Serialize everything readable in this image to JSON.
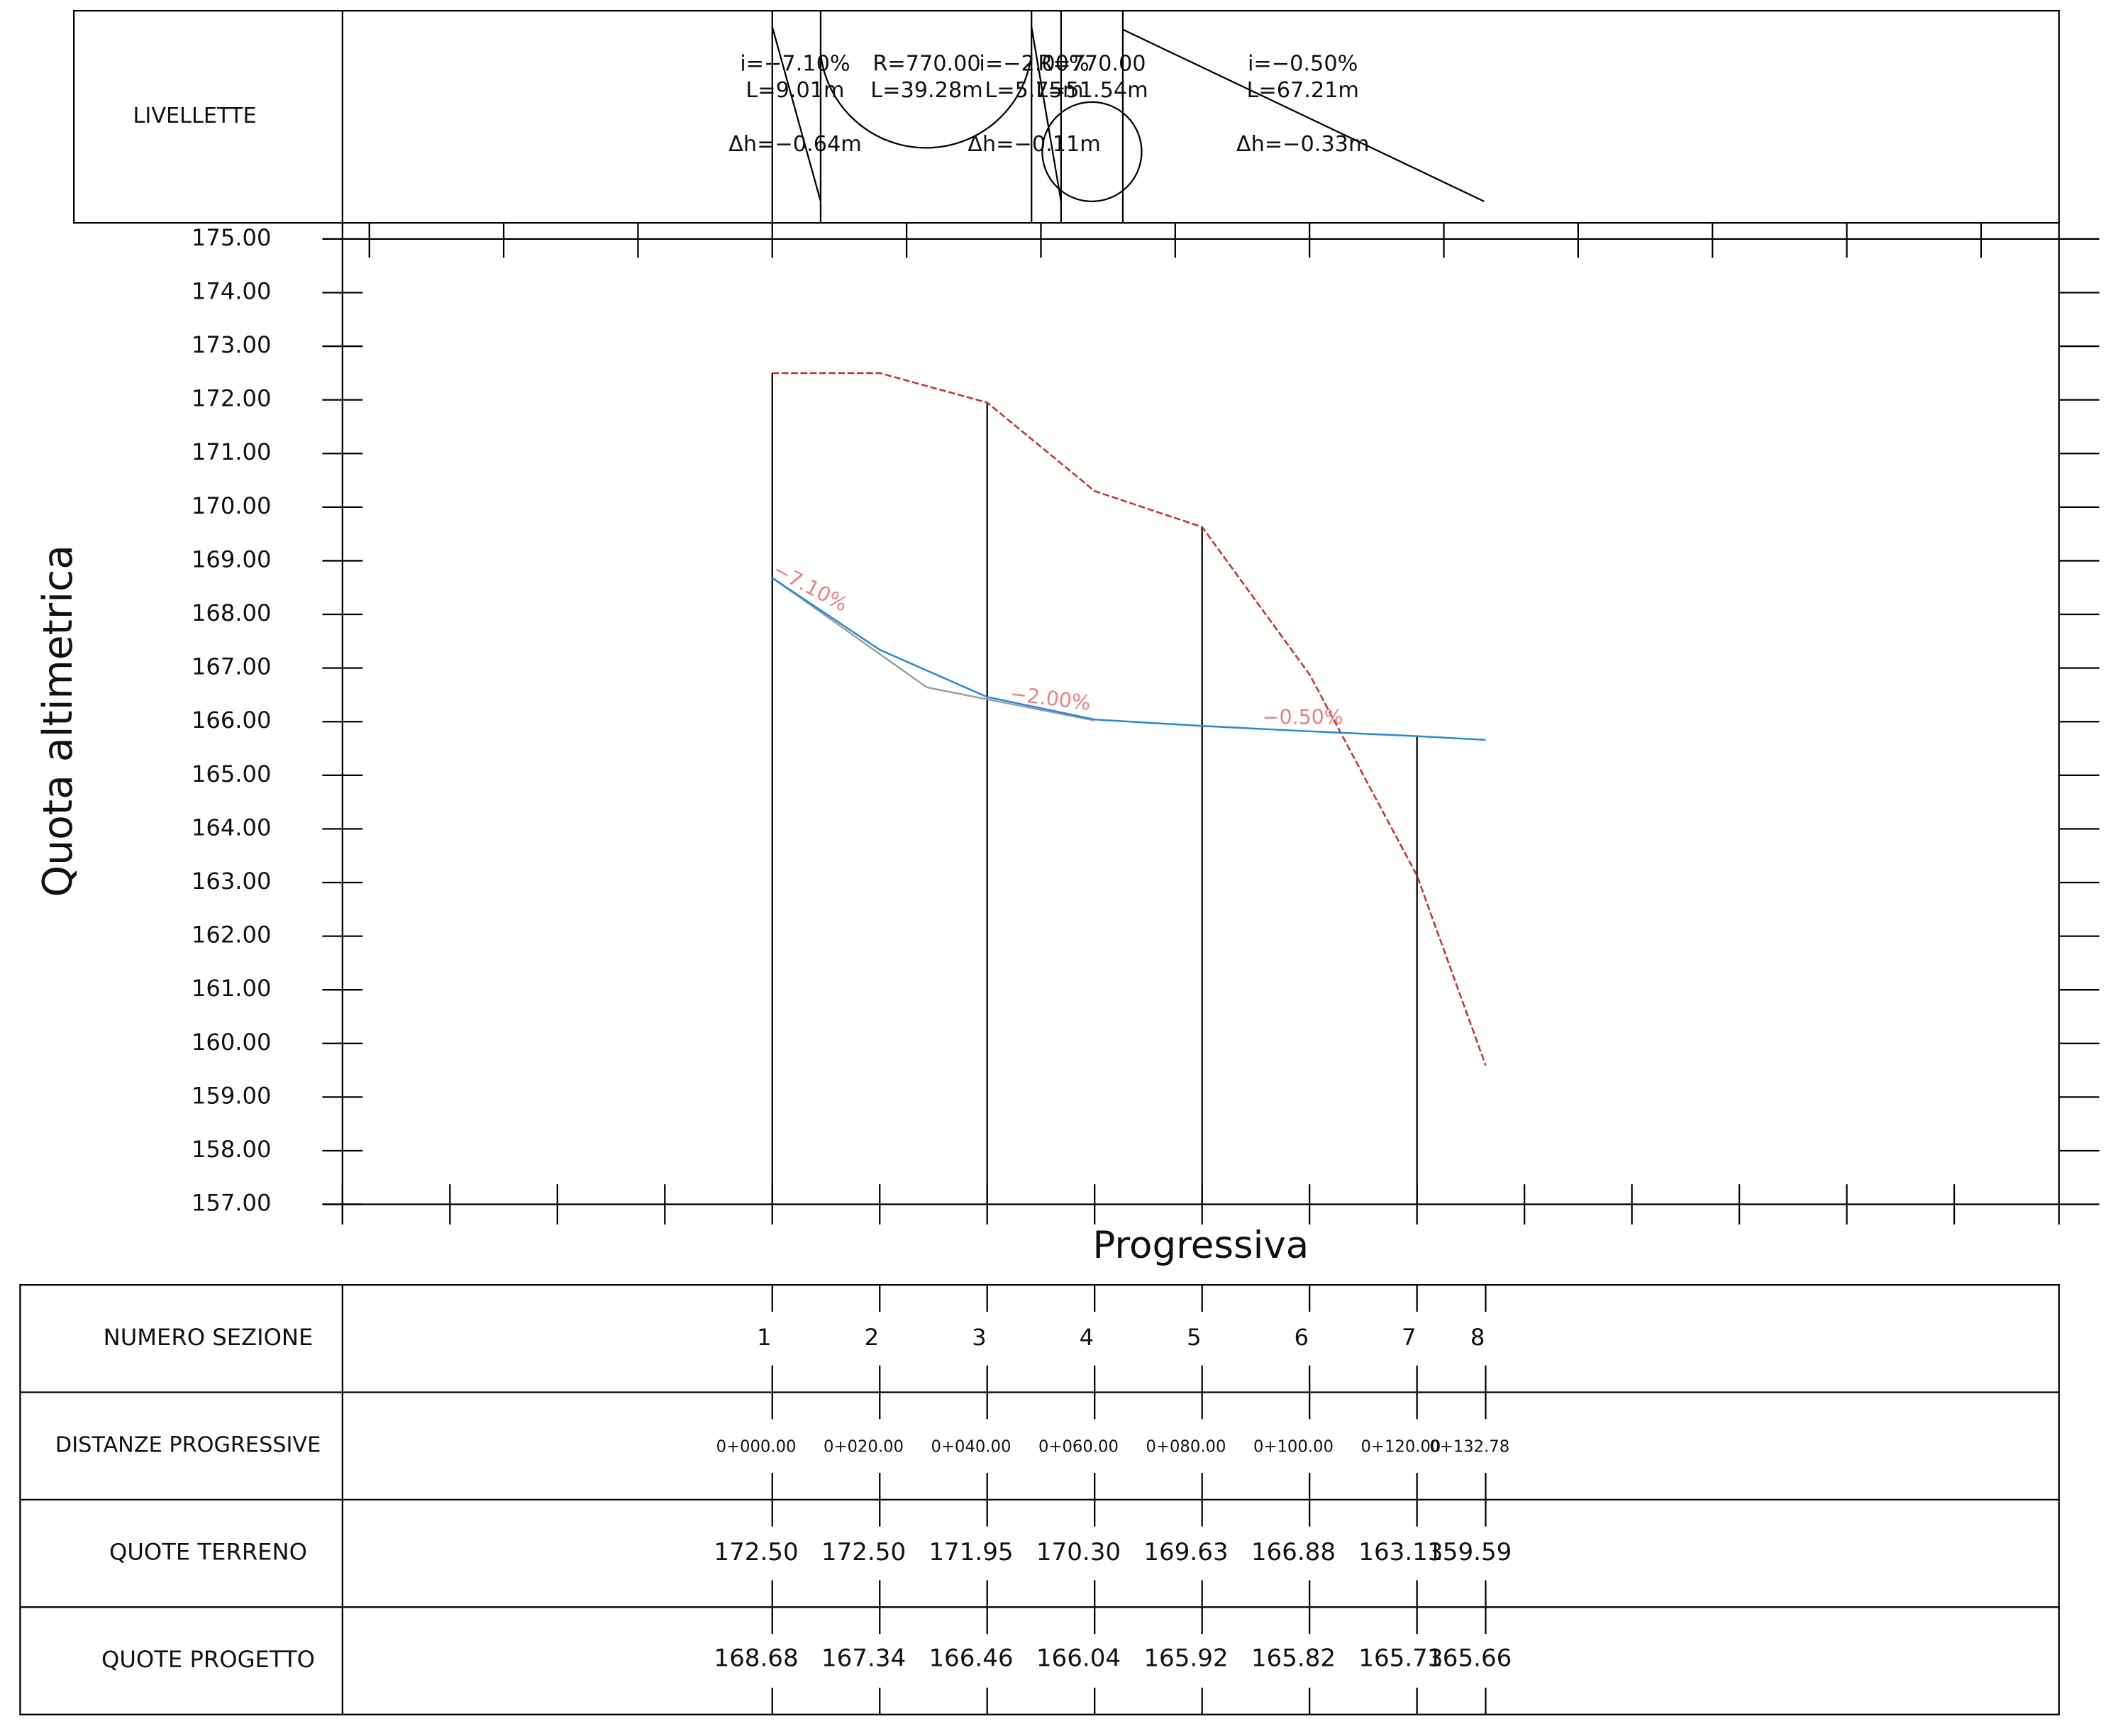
{
  "chart_data": {
    "type": "line",
    "ylabel": "Quota altimetrica",
    "xlabel": "Progressiva",
    "xlim": [
      -80,
      239.5
    ],
    "ylim": [
      157,
      175
    ],
    "yticks": [
      {
        "value": 157,
        "label": "157.00"
      },
      {
        "value": 158,
        "label": "158.00"
      },
      {
        "value": 159,
        "label": "159.00"
      },
      {
        "value": 160,
        "label": "160.00"
      },
      {
        "value": 161,
        "label": "161.00"
      },
      {
        "value": 162,
        "label": "162.00"
      },
      {
        "value": 163,
        "label": "163.00"
      },
      {
        "value": 164,
        "label": "164.00"
      },
      {
        "value": 165,
        "label": "165.00"
      },
      {
        "value": 166,
        "label": "166.00"
      },
      {
        "value": 167,
        "label": "167.00"
      },
      {
        "value": 168,
        "label": "168.00"
      },
      {
        "value": 169,
        "label": "169.00"
      },
      {
        "value": 170,
        "label": "170.00"
      },
      {
        "value": 171,
        "label": "171.00"
      },
      {
        "value": 172,
        "label": "172.00"
      },
      {
        "value": 173,
        "label": "173.00"
      },
      {
        "value": 174,
        "label": "174.00"
      },
      {
        "value": 175,
        "label": "175.00"
      }
    ],
    "xticks": [
      -80,
      -60,
      -40,
      -20,
      0,
      20,
      40,
      60,
      80,
      100,
      120,
      140,
      160,
      180,
      200,
      220
    ],
    "x2ticks": [
      -75,
      -50,
      -25,
      0,
      25,
      50,
      75,
      100,
      125,
      150,
      175,
      200,
      225
    ],
    "x": [
      0,
      20,
      40,
      60,
      80,
      100,
      120,
      132.78
    ],
    "sections": [
      1,
      2,
      3,
      4,
      5,
      6,
      7,
      8
    ],
    "x_labels": [
      "0+000.00",
      "0+020.00",
      "0+040.00",
      "0+060.00",
      "0+080.00",
      "0+100.00",
      "0+120.00",
      "0+132.78"
    ],
    "series": [
      {
        "color": "#d62728",
        "dashed": true,
        "values": [
          172.5,
          172.5,
          171.95,
          170.3,
          169.63,
          166.88,
          163.13,
          159.59
        ],
        "value_labels": [
          "172.50",
          "172.50",
          "171.95",
          "170.30",
          "169.63",
          "166.88",
          "163.13",
          "159.59"
        ]
      },
      {
        "color": "#1e88e5",
        "values": [
          168.68,
          167.34,
          166.46,
          166.04,
          165.92,
          165.82,
          165.73,
          165.66
        ],
        "value_labels": [
          "168.68",
          "167.34",
          "166.46",
          "166.04",
          "165.92",
          "165.82",
          "165.73",
          "165.66"
        ]
      },
      {
        "color": "#9e9e9e",
        "x": [
          0,
          28.75,
          60
        ],
        "values": [
          168.68,
          166.64,
          166.02
        ]
      }
    ],
    "annotations": [
      {
        "text": "−7.10%"
      },
      {
        "text": "−2.00%"
      },
      {
        "text": "−0.50%"
      }
    ],
    "table_rows": [
      "NUMERO SEZIONE",
      "DISTANZE PROGRESSIVE",
      "QUOTE TERRENO",
      "QUOTE PROGETTO"
    ],
    "livellette": {
      "title": "LIVELLETTE",
      "groups": [
        [
          "i=−7.10%",
          "L=9.01m",
          "Δh=−0.64m"
        ],
        [
          "R=770.00",
          "L=39.28m"
        ],
        [
          "i=−2.00%",
          "L=5.75m",
          "Δh=−0.11m"
        ],
        [
          "R=770.00",
          "L=51.54m"
        ],
        [
          "i=−0.50%",
          "L=67.21m",
          "Δh=−0.33m"
        ]
      ]
    }
  }
}
